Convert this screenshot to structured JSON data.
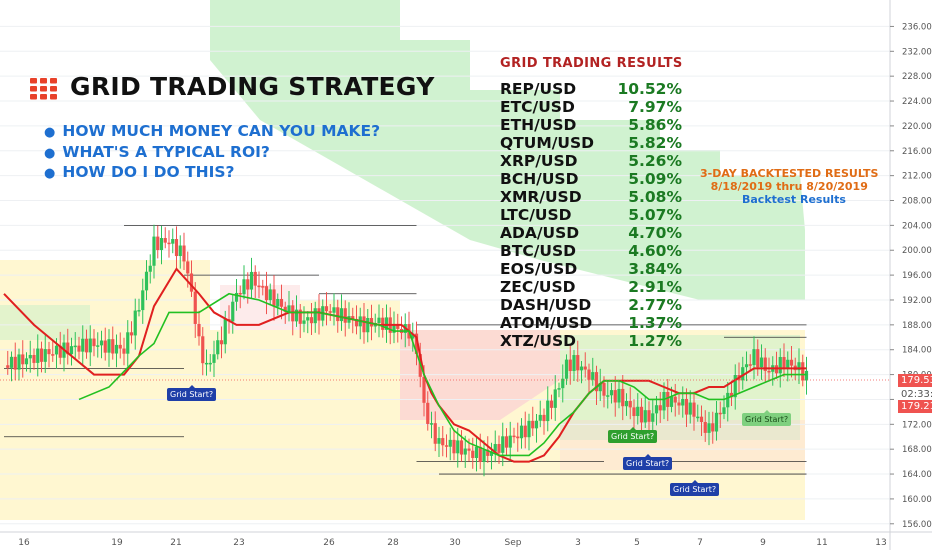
{
  "header": {
    "title": "GRID TRADING STRATEGY",
    "bullets": [
      "HOW MUCH MONEY CAN YOU MAKE?",
      "WHAT'S A TYPICAL ROI?",
      "HOW DO I DO THIS?"
    ]
  },
  "results": {
    "title": "GRID TRADING RESULTS",
    "rows": [
      {
        "pair": "REP/USD",
        "roi": "10.52%"
      },
      {
        "pair": "ETC/USD",
        "roi": "7.97%"
      },
      {
        "pair": "ETH/USD",
        "roi": "5.86%"
      },
      {
        "pair": "QTUM/USD",
        "roi": "5.82%"
      },
      {
        "pair": "XRP/USD",
        "roi": "5.26%"
      },
      {
        "pair": "BCH/USD",
        "roi": "5.09%"
      },
      {
        "pair": "XMR/USD",
        "roi": "5.08%"
      },
      {
        "pair": "LTC/USD",
        "roi": "5.07%"
      },
      {
        "pair": "ADA/USD",
        "roi": "4.70%"
      },
      {
        "pair": "BTC/USD",
        "roi": "4.60%"
      },
      {
        "pair": "EOS/USD",
        "roi": "3.84%"
      },
      {
        "pair": "ZEC/USD",
        "roi": "2.91%"
      },
      {
        "pair": "DASH/USD",
        "roi": "2.77%"
      },
      {
        "pair": "ATOM/USD",
        "roi": "1.37%"
      },
      {
        "pair": "XTZ/USD",
        "roi": "1.27%"
      }
    ]
  },
  "backtest": {
    "heading": "3-DAY BACKTESTED RESULTS",
    "range": "8/18/2019  thru  8/20/2019",
    "link": "Backtest Results"
  },
  "markers": {
    "grid_start": "Grid Start?"
  },
  "price_tags": {
    "last": "179.53",
    "countdown": "02:33:33",
    "baseline": "179.21"
  },
  "colors": {
    "up": "#26a69a",
    "up_bright": "#2fc15a",
    "down": "#ef5350",
    "conversion_line": "#e02020",
    "base_line": "#22c022",
    "cloud_green": "#c8f0c8",
    "cloud_red": "#fbd3d3",
    "cloud_yellow": "#fff6cc",
    "title_red": "#b22222",
    "roi_green": "#1b7a22",
    "bullet_blue": "#1e6fd0",
    "backtest_orange": "#e06c15"
  },
  "chart_data": {
    "type": "candlestick",
    "x_tick_labels": [
      "16",
      "19",
      "21",
      "23",
      "26",
      "28",
      "30",
      "Sep",
      "3",
      "5",
      "7",
      "9",
      "11",
      "13"
    ],
    "y_tick_labels": [
      "236.00",
      "232.00",
      "228.00",
      "224.00",
      "220.00",
      "216.00",
      "212.00",
      "208.00",
      "204.00",
      "200.00",
      "196.00",
      "192.00",
      "188.00",
      "184.00",
      "180.00",
      "176.00",
      "172.00",
      "168.00",
      "164.00",
      "160.00",
      "156.00"
    ],
    "ylim": [
      155,
      238
    ],
    "last_price": 179.53,
    "close_path": [
      [
        0,
        181.5
      ],
      [
        6,
        183.5
      ],
      [
        12,
        185.0
      ],
      [
        16,
        184.0
      ],
      [
        18,
        191.0
      ],
      [
        20,
        201.0
      ],
      [
        22,
        201.5
      ],
      [
        24,
        199.0
      ],
      [
        25,
        193.0
      ],
      [
        26,
        185.0
      ],
      [
        27,
        181.0
      ],
      [
        29,
        186.0
      ],
      [
        31,
        193.0
      ],
      [
        33,
        195.5
      ],
      [
        35,
        193.0
      ],
      [
        37,
        191.0
      ],
      [
        40,
        188.5
      ],
      [
        43,
        190.5
      ],
      [
        46,
        189.0
      ],
      [
        48,
        188.0
      ],
      [
        50,
        188.5
      ],
      [
        52,
        187.5
      ],
      [
        54,
        187.0
      ],
      [
        55,
        184.0
      ],
      [
        56,
        175.0
      ],
      [
        57,
        171.0
      ],
      [
        58,
        169.0
      ],
      [
        60,
        168.5
      ],
      [
        62,
        167.5
      ],
      [
        64,
        167.0
      ],
      [
        66,
        168.5
      ],
      [
        68,
        170.0
      ],
      [
        70,
        171.5
      ],
      [
        72,
        173.5
      ],
      [
        74,
        178.0
      ],
      [
        75,
        181.5
      ],
      [
        76,
        182.0
      ],
      [
        78,
        180.0
      ],
      [
        80,
        177.0
      ],
      [
        82,
        176.5
      ],
      [
        84,
        174.0
      ],
      [
        86,
        173.0
      ],
      [
        88,
        176.0
      ],
      [
        90,
        175.5
      ],
      [
        92,
        174.0
      ],
      [
        93,
        172.0
      ],
      [
        94,
        171.0
      ],
      [
        96,
        175.0
      ],
      [
        98,
        180.0
      ],
      [
        100,
        183.0
      ],
      [
        102,
        180.5
      ],
      [
        104,
        182.0
      ],
      [
        106,
        181.0
      ],
      [
        107,
        179.5
      ]
    ],
    "conversion_line": [
      [
        0,
        193
      ],
      [
        4,
        188
      ],
      [
        8,
        184
      ],
      [
        12,
        180
      ],
      [
        16,
        180
      ],
      [
        18,
        183
      ],
      [
        20,
        191
      ],
      [
        23,
        197
      ],
      [
        26,
        193
      ],
      [
        28,
        190
      ],
      [
        31,
        188
      ],
      [
        34,
        188
      ],
      [
        38,
        190
      ],
      [
        42,
        190
      ],
      [
        46,
        189
      ],
      [
        50,
        188
      ],
      [
        53,
        188
      ],
      [
        55,
        186
      ],
      [
        56,
        180
      ],
      [
        57,
        177
      ],
      [
        58,
        175
      ],
      [
        60,
        172
      ],
      [
        62,
        171
      ],
      [
        64,
        169
      ],
      [
        66,
        167
      ],
      [
        68,
        166
      ],
      [
        70,
        166
      ],
      [
        72,
        167
      ],
      [
        74,
        170
      ],
      [
        76,
        174
      ],
      [
        78,
        177
      ],
      [
        80,
        179
      ],
      [
        83,
        179
      ],
      [
        86,
        179
      ],
      [
        88,
        178
      ],
      [
        90,
        177
      ],
      [
        92,
        177
      ],
      [
        94,
        178
      ],
      [
        96,
        178
      ],
      [
        100,
        181
      ],
      [
        104,
        181
      ],
      [
        107,
        181
      ]
    ],
    "base_line": [
      [
        10,
        176
      ],
      [
        14,
        178
      ],
      [
        18,
        183
      ],
      [
        20,
        185
      ],
      [
        22,
        190
      ],
      [
        26,
        190
      ],
      [
        30,
        193
      ],
      [
        34,
        192
      ],
      [
        38,
        190
      ],
      [
        42,
        190
      ],
      [
        46,
        189
      ],
      [
        50,
        188
      ],
      [
        52,
        187
      ],
      [
        54,
        187
      ],
      [
        56,
        180
      ],
      [
        58,
        175
      ],
      [
        60,
        171
      ],
      [
        62,
        169
      ],
      [
        64,
        168
      ],
      [
        66,
        167
      ],
      [
        68,
        167
      ],
      [
        70,
        167
      ],
      [
        72,
        169
      ],
      [
        74,
        172
      ],
      [
        76,
        174
      ],
      [
        78,
        177
      ],
      [
        80,
        179
      ],
      [
        82,
        179
      ],
      [
        84,
        178
      ],
      [
        86,
        176
      ],
      [
        88,
        176
      ],
      [
        90,
        177
      ],
      [
        92,
        177
      ],
      [
        94,
        176
      ],
      [
        96,
        176
      ],
      [
        98,
        177
      ],
      [
        100,
        178
      ],
      [
        102,
        179
      ],
      [
        104,
        180
      ],
      [
        106,
        180
      ],
      [
        107,
        180
      ]
    ],
    "support_resistance": [
      {
        "y": 204.0,
        "x0": 16,
        "x1": 55
      },
      {
        "y": 196.0,
        "x0": 24,
        "x1": 42
      },
      {
        "y": 193.0,
        "x0": 42,
        "x1": 55
      },
      {
        "y": 188.0,
        "x0": 55,
        "x1": 107
      },
      {
        "y": 186.0,
        "x0": 96,
        "x1": 107
      },
      {
        "y": 166.0,
        "x0": 55,
        "x1": 80
      },
      {
        "y": 166.0,
        "x0": 86,
        "x1": 107
      },
      {
        "y": 164.0,
        "x0": 58,
        "x1": 107
      },
      {
        "y": 181.0,
        "x0": 0,
        "x1": 24
      },
      {
        "y": 170.0,
        "x0": 0,
        "x1": 24
      }
    ]
  }
}
